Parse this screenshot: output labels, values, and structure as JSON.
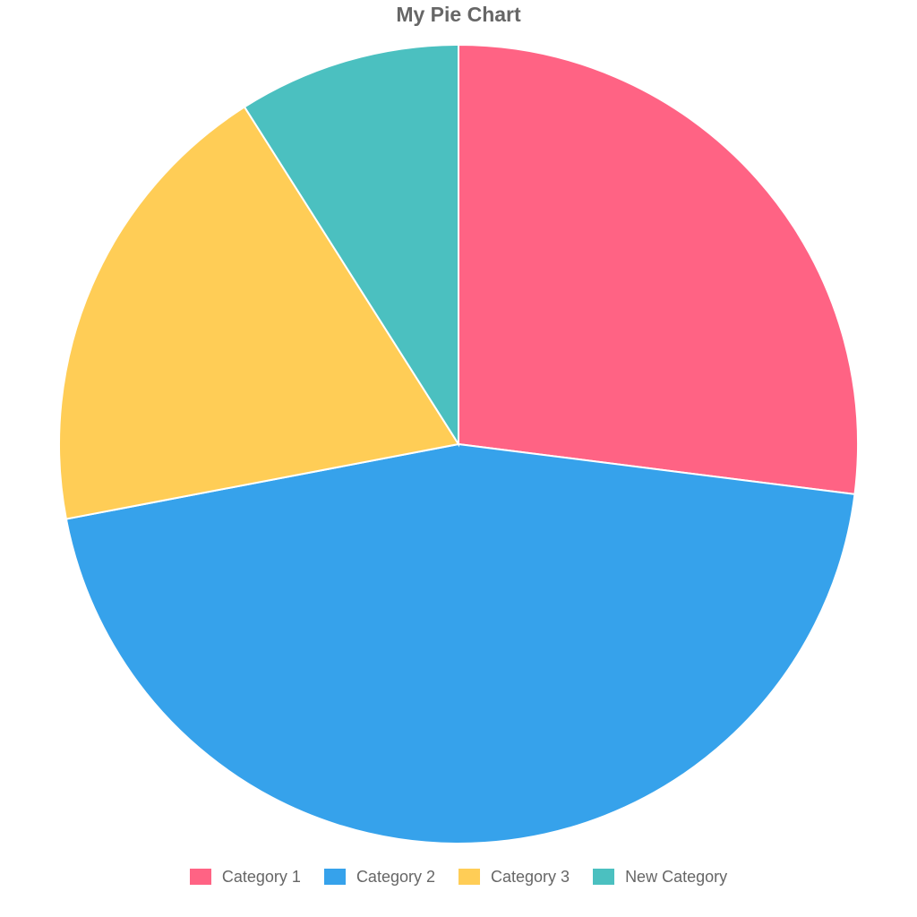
{
  "chart_data": {
    "type": "pie",
    "title": "My Pie Chart",
    "categories": [
      "Category 1",
      "Category 2",
      "Category 3",
      "New Category"
    ],
    "values": [
      27,
      45,
      19,
      9
    ],
    "colors": [
      "#ff6384",
      "#36a2eb",
      "#ffcd56",
      "#4bc0c0"
    ],
    "legend_position": "bottom"
  }
}
